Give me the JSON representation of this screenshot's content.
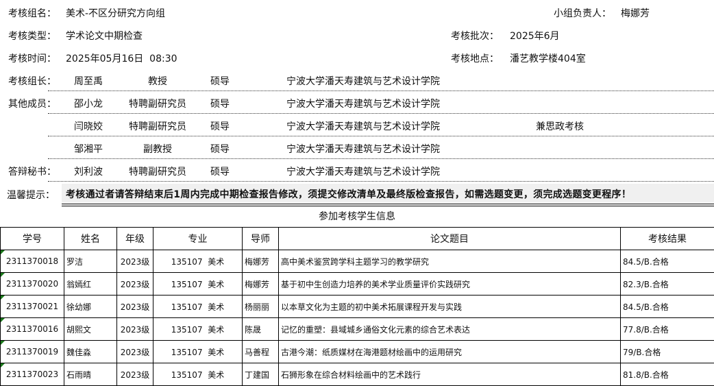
{
  "header": {
    "group_label": "考核组名：",
    "group_value": "美术-不区分研究方向组",
    "leader_label": "小组负责人：",
    "leader_value": "梅娜芳",
    "type_label": "考核类型：",
    "type_value": "学术论文中期检查",
    "batch_label": "考核批次：",
    "batch_value": "2025年6月",
    "time_label": "考核时间：",
    "time_value": "2025年05月16日  08:30",
    "place_label": "考核地点：",
    "place_value": "潘艺教学楼404室"
  },
  "committee": [
    {
      "role": "考核组长：",
      "name": "周至禹",
      "title": "教授",
      "supervisor": "硕导",
      "unit": "宁波大学潘天寿建筑与艺术设计学院",
      "note": ""
    },
    {
      "role": "其他成员：",
      "name": "邵小龙",
      "title": "特聘副研究员",
      "supervisor": "硕导",
      "unit": "宁波大学潘天寿建筑与艺术设计学院",
      "note": ""
    },
    {
      "role": "",
      "name": "闫晓姣",
      "title": "特聘副研究员",
      "supervisor": "硕导",
      "unit": "宁波大学潘天寿建筑与艺术设计学院",
      "note": "兼思政考核"
    },
    {
      "role": "",
      "name": "邹湘平",
      "title": "副教授",
      "supervisor": "硕导",
      "unit": "宁波大学潘天寿建筑与艺术设计学院",
      "note": ""
    },
    {
      "role": "答辩秘书：",
      "name": "刘利波",
      "title": "特聘副研究员",
      "supervisor": "硕导",
      "unit": "宁波大学潘天寿建筑与艺术设计学院",
      "note": ""
    }
  ],
  "tip": {
    "label": "温馨提示：",
    "text": "考核通过者请答辩结束后1周内完成中期检查报告修改，须提交修改清单及最终版检查报告，如需选题变更，须完成选题变更程序！"
  },
  "table": {
    "title": "参加考核学生信息",
    "columns": [
      "学号",
      "姓名",
      "年级",
      "专业",
      "导师",
      "论文题目",
      "考核结果"
    ],
    "rows": [
      [
        "2311370018",
        "罗洁",
        "2023级",
        "135107  美术",
        "梅娜芳",
        "高中美术鉴赏跨学科主题学习的教学研究",
        "84.5/B.合格"
      ],
      [
        "2311370020",
        "翁嫣红",
        "2023级",
        "135107  美术",
        "梅娜芳",
        "基于初中生创造力培养的美术学业质量评价实践研究",
        "82.3/B.合格"
      ],
      [
        "2311370021",
        "徐幼娜",
        "2023级",
        "135107  美术",
        "杨丽丽",
        "以本草文化为主题的初中美术拓展课程开发与实践",
        "84.5/B.合格"
      ],
      [
        "2311370016",
        "胡熙文",
        "2023级",
        "135107  美术",
        "陈晟",
        "记忆的重塑：县域城乡通俗文化元素的综合艺术表达",
        "77.8/B.合格"
      ],
      [
        "2311370019",
        "魏佳淼",
        "2023级",
        "135107  美术",
        "马善程",
        "古港今潮：纸质媒材在海港题材绘画中的运用研究",
        "79/B.合格"
      ],
      [
        "2311370023",
        "石雨晴",
        "2023级",
        "135107  美术",
        "丁建国",
        "石狮形象在综合材料绘画中的艺术践行",
        "81.8/B.合格"
      ]
    ]
  }
}
